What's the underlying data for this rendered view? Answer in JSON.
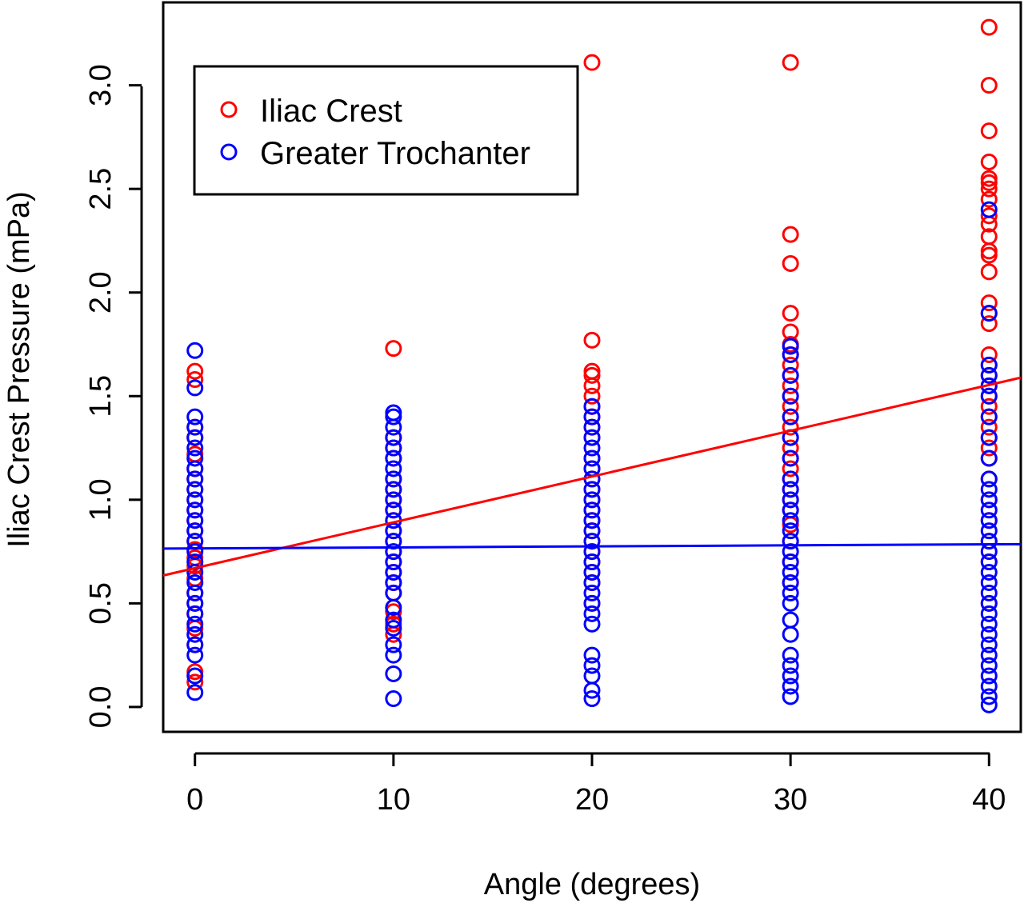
{
  "chart_data": {
    "type": "scatter",
    "title": "",
    "xlabel": "Angle (degrees)",
    "ylabel": "Iliac Crest Pressure (mPa)",
    "xlim": [
      -1.6,
      41.6
    ],
    "ylim": [
      -0.12,
      3.4
    ],
    "x_ticks": [
      0,
      10,
      20,
      30,
      40
    ],
    "y_ticks": [
      0.0,
      0.5,
      1.0,
      1.5,
      2.0,
      2.5,
      3.0
    ],
    "x_tick_labels": [
      "0",
      "10",
      "20",
      "30",
      "40"
    ],
    "y_tick_labels": [
      "0.0",
      "0.5",
      "1.0",
      "1.5",
      "2.0",
      "2.5",
      "3.0"
    ],
    "legend": {
      "position": "top-left"
    },
    "series": [
      {
        "name": "Iliac Crest",
        "color": "#ff0000",
        "marker": "open-circle",
        "points": [
          [
            0,
            0.12
          ],
          [
            0,
            0.17
          ],
          [
            0,
            0.3
          ],
          [
            0,
            0.38
          ],
          [
            0,
            0.45
          ],
          [
            0,
            0.5
          ],
          [
            0,
            0.55
          ],
          [
            0,
            0.62
          ],
          [
            0,
            0.68
          ],
          [
            0,
            0.72
          ],
          [
            0,
            0.76
          ],
          [
            0,
            0.8
          ],
          [
            0,
            0.85
          ],
          [
            0,
            0.9
          ],
          [
            0,
            0.95
          ],
          [
            0,
            1.0
          ],
          [
            0,
            1.05
          ],
          [
            0,
            1.1
          ],
          [
            0,
            1.15
          ],
          [
            0,
            1.22
          ],
          [
            0,
            1.3
          ],
          [
            0,
            1.35
          ],
          [
            0,
            1.58
          ],
          [
            0,
            1.62
          ],
          [
            10,
            0.35
          ],
          [
            10,
            0.4
          ],
          [
            10,
            0.46
          ],
          [
            10,
            0.55
          ],
          [
            10,
            0.6
          ],
          [
            10,
            0.65
          ],
          [
            10,
            0.7
          ],
          [
            10,
            0.75
          ],
          [
            10,
            0.8
          ],
          [
            10,
            0.85
          ],
          [
            10,
            0.9
          ],
          [
            10,
            0.95
          ],
          [
            10,
            1.0
          ],
          [
            10,
            1.05
          ],
          [
            10,
            1.1
          ],
          [
            10,
            1.2
          ],
          [
            10,
            1.25
          ],
          [
            10,
            1.3
          ],
          [
            10,
            1.73
          ],
          [
            20,
            0.5
          ],
          [
            20,
            0.6
          ],
          [
            20,
            0.65
          ],
          [
            20,
            0.7
          ],
          [
            20,
            0.75
          ],
          [
            20,
            0.8
          ],
          [
            20,
            0.85
          ],
          [
            20,
            0.9
          ],
          [
            20,
            0.95
          ],
          [
            20,
            1.0
          ],
          [
            20,
            1.05
          ],
          [
            20,
            1.1
          ],
          [
            20,
            1.15
          ],
          [
            20,
            1.2
          ],
          [
            20,
            1.3
          ],
          [
            20,
            1.35
          ],
          [
            20,
            1.4
          ],
          [
            20,
            1.45
          ],
          [
            20,
            1.5
          ],
          [
            20,
            1.55
          ],
          [
            20,
            1.6
          ],
          [
            20,
            1.62
          ],
          [
            20,
            1.77
          ],
          [
            20,
            3.11
          ],
          [
            30,
            0.6
          ],
          [
            30,
            0.7
          ],
          [
            30,
            0.8
          ],
          [
            30,
            0.88
          ],
          [
            30,
            0.95
          ],
          [
            30,
            1.0
          ],
          [
            30,
            1.05
          ],
          [
            30,
            1.1
          ],
          [
            30,
            1.15
          ],
          [
            30,
            1.2
          ],
          [
            30,
            1.25
          ],
          [
            30,
            1.3
          ],
          [
            30,
            1.35
          ],
          [
            30,
            1.4
          ],
          [
            30,
            1.45
          ],
          [
            30,
            1.5
          ],
          [
            30,
            1.55
          ],
          [
            30,
            1.6
          ],
          [
            30,
            1.65
          ],
          [
            30,
            1.7
          ],
          [
            30,
            1.75
          ],
          [
            30,
            1.81
          ],
          [
            30,
            1.9
          ],
          [
            30,
            2.14
          ],
          [
            30,
            2.28
          ],
          [
            30,
            3.11
          ],
          [
            40,
            0.5
          ],
          [
            40,
            0.7
          ],
          [
            40,
            0.8
          ],
          [
            40,
            0.9
          ],
          [
            40,
            1.0
          ],
          [
            40,
            1.1
          ],
          [
            40,
            1.2
          ],
          [
            40,
            1.25
          ],
          [
            40,
            1.3
          ],
          [
            40,
            1.35
          ],
          [
            40,
            1.4
          ],
          [
            40,
            1.45
          ],
          [
            40,
            1.5
          ],
          [
            40,
            1.55
          ],
          [
            40,
            1.6
          ],
          [
            40,
            1.65
          ],
          [
            40,
            1.7
          ],
          [
            40,
            1.85
          ],
          [
            40,
            1.9
          ],
          [
            40,
            1.95
          ],
          [
            40,
            2.1
          ],
          [
            40,
            2.18
          ],
          [
            40,
            2.2
          ],
          [
            40,
            2.27
          ],
          [
            40,
            2.33
          ],
          [
            40,
            2.37
          ],
          [
            40,
            2.45
          ],
          [
            40,
            2.5
          ],
          [
            40,
            2.53
          ],
          [
            40,
            2.55
          ],
          [
            40,
            2.63
          ],
          [
            40,
            2.78
          ],
          [
            40,
            3.0
          ],
          [
            40,
            3.28
          ]
        ],
        "fit": {
          "intercept": 0.67,
          "slope": 0.0221
        }
      },
      {
        "name": "Greater Trochanter",
        "color": "#0000ff",
        "marker": "open-circle",
        "points": [
          [
            0,
            0.07
          ],
          [
            0,
            0.15
          ],
          [
            0,
            0.25
          ],
          [
            0,
            0.3
          ],
          [
            0,
            0.35
          ],
          [
            0,
            0.4
          ],
          [
            0,
            0.45
          ],
          [
            0,
            0.5
          ],
          [
            0,
            0.55
          ],
          [
            0,
            0.6
          ],
          [
            0,
            0.65
          ],
          [
            0,
            0.7
          ],
          [
            0,
            0.75
          ],
          [
            0,
            0.8
          ],
          [
            0,
            0.85
          ],
          [
            0,
            0.9
          ],
          [
            0,
            0.95
          ],
          [
            0,
            1.0
          ],
          [
            0,
            1.05
          ],
          [
            0,
            1.1
          ],
          [
            0,
            1.15
          ],
          [
            0,
            1.2
          ],
          [
            0,
            1.25
          ],
          [
            0,
            1.3
          ],
          [
            0,
            1.35
          ],
          [
            0,
            1.4
          ],
          [
            0,
            1.54
          ],
          [
            0,
            1.72
          ],
          [
            10,
            0.04
          ],
          [
            10,
            0.16
          ],
          [
            10,
            0.25
          ],
          [
            10,
            0.3
          ],
          [
            10,
            0.38
          ],
          [
            10,
            0.42
          ],
          [
            10,
            0.48
          ],
          [
            10,
            0.55
          ],
          [
            10,
            0.6
          ],
          [
            10,
            0.65
          ],
          [
            10,
            0.7
          ],
          [
            10,
            0.75
          ],
          [
            10,
            0.8
          ],
          [
            10,
            0.85
          ],
          [
            10,
            0.9
          ],
          [
            10,
            0.95
          ],
          [
            10,
            1.0
          ],
          [
            10,
            1.05
          ],
          [
            10,
            1.1
          ],
          [
            10,
            1.15
          ],
          [
            10,
            1.2
          ],
          [
            10,
            1.25
          ],
          [
            10,
            1.3
          ],
          [
            10,
            1.35
          ],
          [
            10,
            1.4
          ],
          [
            10,
            1.42
          ],
          [
            20,
            0.04
          ],
          [
            20,
            0.08
          ],
          [
            20,
            0.15
          ],
          [
            20,
            0.2
          ],
          [
            20,
            0.25
          ],
          [
            20,
            0.4
          ],
          [
            20,
            0.45
          ],
          [
            20,
            0.5
          ],
          [
            20,
            0.55
          ],
          [
            20,
            0.6
          ],
          [
            20,
            0.65
          ],
          [
            20,
            0.7
          ],
          [
            20,
            0.75
          ],
          [
            20,
            0.8
          ],
          [
            20,
            0.85
          ],
          [
            20,
            0.9
          ],
          [
            20,
            0.95
          ],
          [
            20,
            1.0
          ],
          [
            20,
            1.05
          ],
          [
            20,
            1.1
          ],
          [
            20,
            1.15
          ],
          [
            20,
            1.2
          ],
          [
            20,
            1.25
          ],
          [
            20,
            1.3
          ],
          [
            20,
            1.35
          ],
          [
            20,
            1.4
          ],
          [
            20,
            1.45
          ],
          [
            30,
            0.05
          ],
          [
            30,
            0.1
          ],
          [
            30,
            0.15
          ],
          [
            30,
            0.2
          ],
          [
            30,
            0.25
          ],
          [
            30,
            0.35
          ],
          [
            30,
            0.42
          ],
          [
            30,
            0.5
          ],
          [
            30,
            0.55
          ],
          [
            30,
            0.6
          ],
          [
            30,
            0.65
          ],
          [
            30,
            0.7
          ],
          [
            30,
            0.75
          ],
          [
            30,
            0.8
          ],
          [
            30,
            0.85
          ],
          [
            30,
            0.9
          ],
          [
            30,
            0.95
          ],
          [
            30,
            1.0
          ],
          [
            30,
            1.05
          ],
          [
            30,
            1.1
          ],
          [
            30,
            1.2
          ],
          [
            30,
            1.3
          ],
          [
            30,
            1.4
          ],
          [
            30,
            1.5
          ],
          [
            30,
            1.6
          ],
          [
            30,
            1.7
          ],
          [
            30,
            1.74
          ],
          [
            40,
            0.01
          ],
          [
            40,
            0.05
          ],
          [
            40,
            0.1
          ],
          [
            40,
            0.15
          ],
          [
            40,
            0.2
          ],
          [
            40,
            0.25
          ],
          [
            40,
            0.3
          ],
          [
            40,
            0.35
          ],
          [
            40,
            0.4
          ],
          [
            40,
            0.45
          ],
          [
            40,
            0.5
          ],
          [
            40,
            0.55
          ],
          [
            40,
            0.6
          ],
          [
            40,
            0.65
          ],
          [
            40,
            0.7
          ],
          [
            40,
            0.75
          ],
          [
            40,
            0.8
          ],
          [
            40,
            0.85
          ],
          [
            40,
            0.9
          ],
          [
            40,
            0.95
          ],
          [
            40,
            1.0
          ],
          [
            40,
            1.05
          ],
          [
            40,
            1.1
          ],
          [
            40,
            1.2
          ],
          [
            40,
            1.3
          ],
          [
            40,
            1.4
          ],
          [
            40,
            1.5
          ],
          [
            40,
            1.55
          ],
          [
            40,
            1.6
          ],
          [
            40,
            1.65
          ],
          [
            40,
            1.9
          ],
          [
            40,
            2.4
          ]
        ],
        "fit": {
          "intercept": 0.765,
          "slope": 0.0005
        }
      }
    ]
  }
}
